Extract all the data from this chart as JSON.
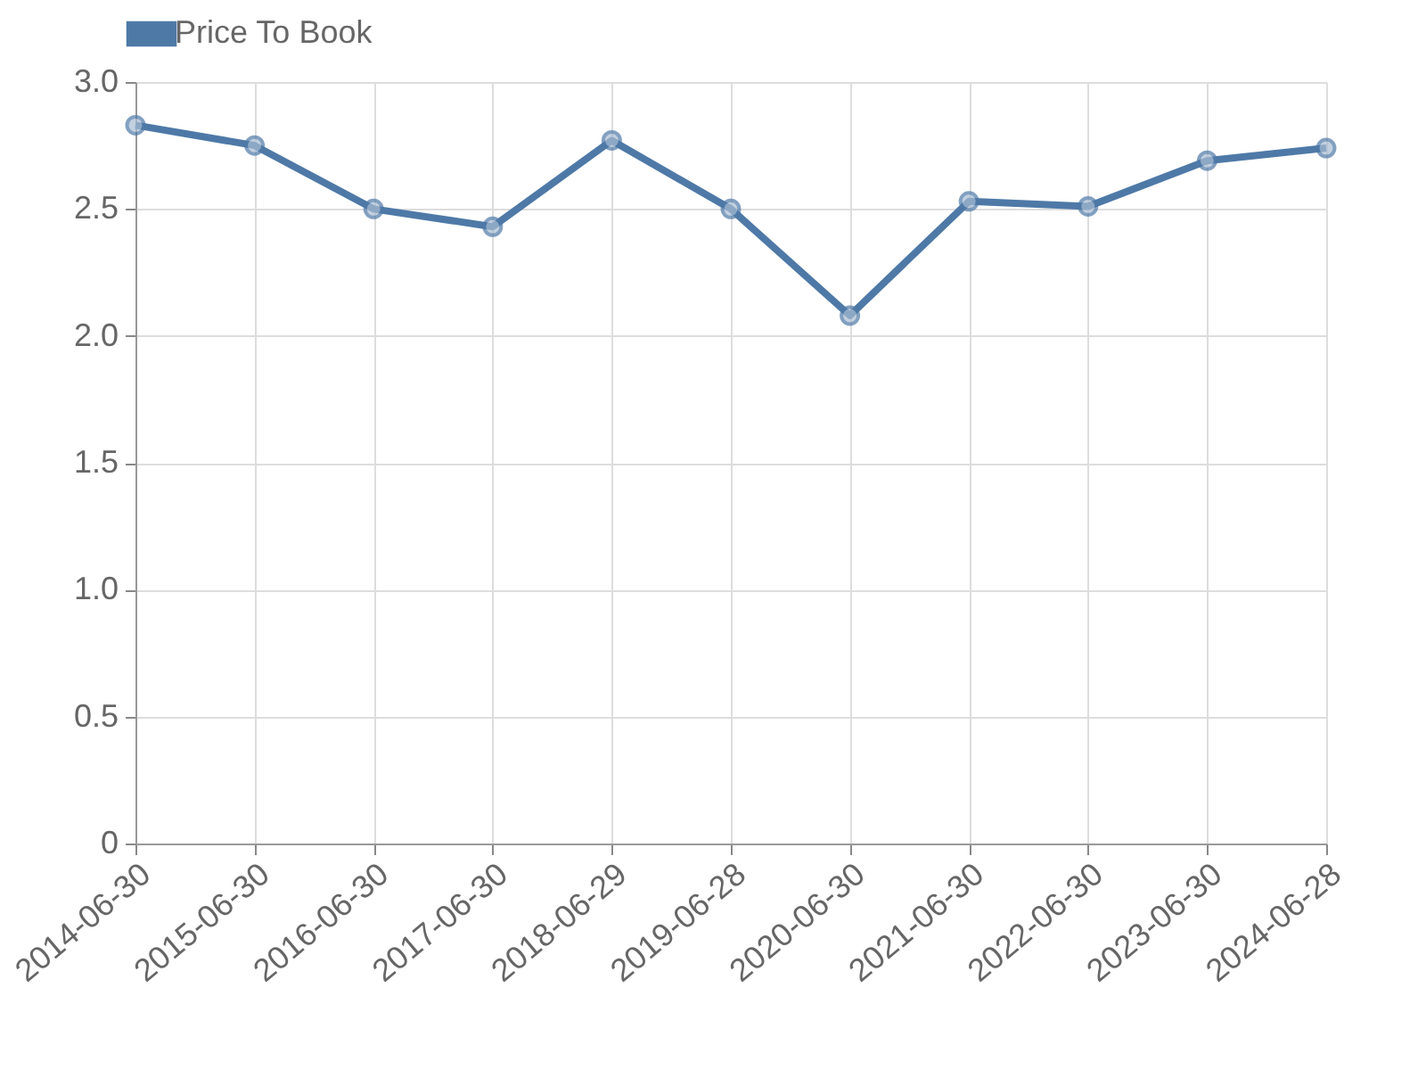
{
  "chart_data": {
    "type": "line",
    "categories": [
      "2014-06-30",
      "2015-06-30",
      "2016-06-30",
      "2017-06-30",
      "2018-06-29",
      "2019-06-28",
      "2020-06-30",
      "2021-06-30",
      "2022-06-30",
      "2023-06-30",
      "2024-06-28"
    ],
    "series": [
      {
        "name": "Price To Book",
        "color": "#4e79a7",
        "values": [
          2.83,
          2.75,
          2.5,
          2.43,
          2.77,
          2.5,
          2.08,
          2.53,
          2.51,
          2.69,
          2.74
        ]
      }
    ],
    "ylim": [
      0,
      3
    ],
    "yticks": [
      0,
      {
        "value": 0.5,
        "label": "0.5"
      },
      {
        "value": 1,
        "label": "1.0"
      },
      {
        "value": 1.5,
        "label": "1.5"
      },
      {
        "value": 2,
        "label": "2.0"
      },
      {
        "value": 2.5,
        "label": "2.5"
      },
      {
        "value": 3,
        "label": "3.0"
      }
    ],
    "grid": true,
    "legend": "top",
    "marker": "circle",
    "line_style": "solid"
  }
}
